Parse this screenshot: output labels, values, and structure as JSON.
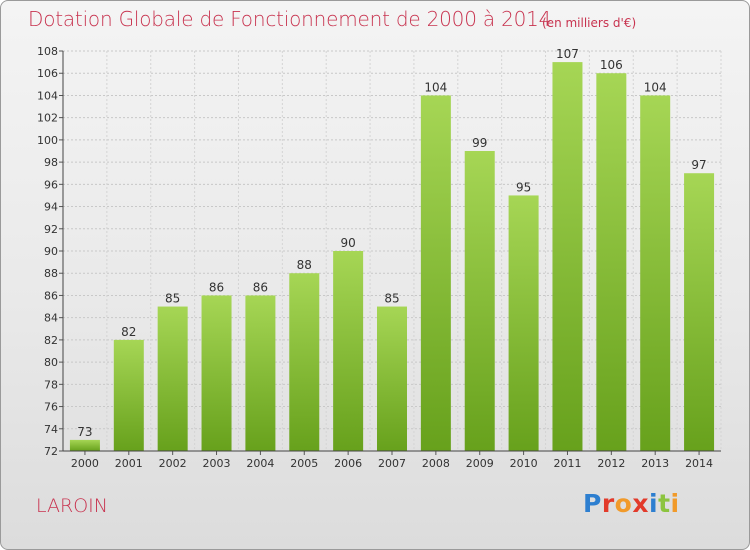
{
  "header": {
    "title": "Dotation Globale de Fonctionnement de 2000 à 2014",
    "unit": "(en milliers d'€)"
  },
  "footer": {
    "commune": "LAROIN",
    "logo_text": "Proxiti"
  },
  "colors": {
    "title": "#c8334f",
    "bar_light": "#9fd04f",
    "bar_dark": "#6ca61f",
    "grid": "#c9c9c9"
  },
  "chart_data": {
    "type": "bar",
    "title": "Dotation Globale de Fonctionnement de 2000 à 2014",
    "subtitle": "(en milliers d'€)",
    "xlabel": "",
    "ylabel": "",
    "categories": [
      "2000",
      "2001",
      "2002",
      "2003",
      "2004",
      "2005",
      "2006",
      "2007",
      "2008",
      "2009",
      "2010",
      "2011",
      "2012",
      "2013",
      "2014"
    ],
    "values": [
      73,
      82,
      85,
      86,
      86,
      88,
      90,
      85,
      104,
      99,
      95,
      107,
      106,
      104,
      97
    ],
    "ylim": [
      72,
      108
    ],
    "yticks": [
      72,
      74,
      76,
      78,
      80,
      82,
      84,
      86,
      88,
      90,
      92,
      94,
      96,
      98,
      100,
      102,
      104,
      106,
      108
    ],
    "grid": true,
    "data_labels": true
  }
}
